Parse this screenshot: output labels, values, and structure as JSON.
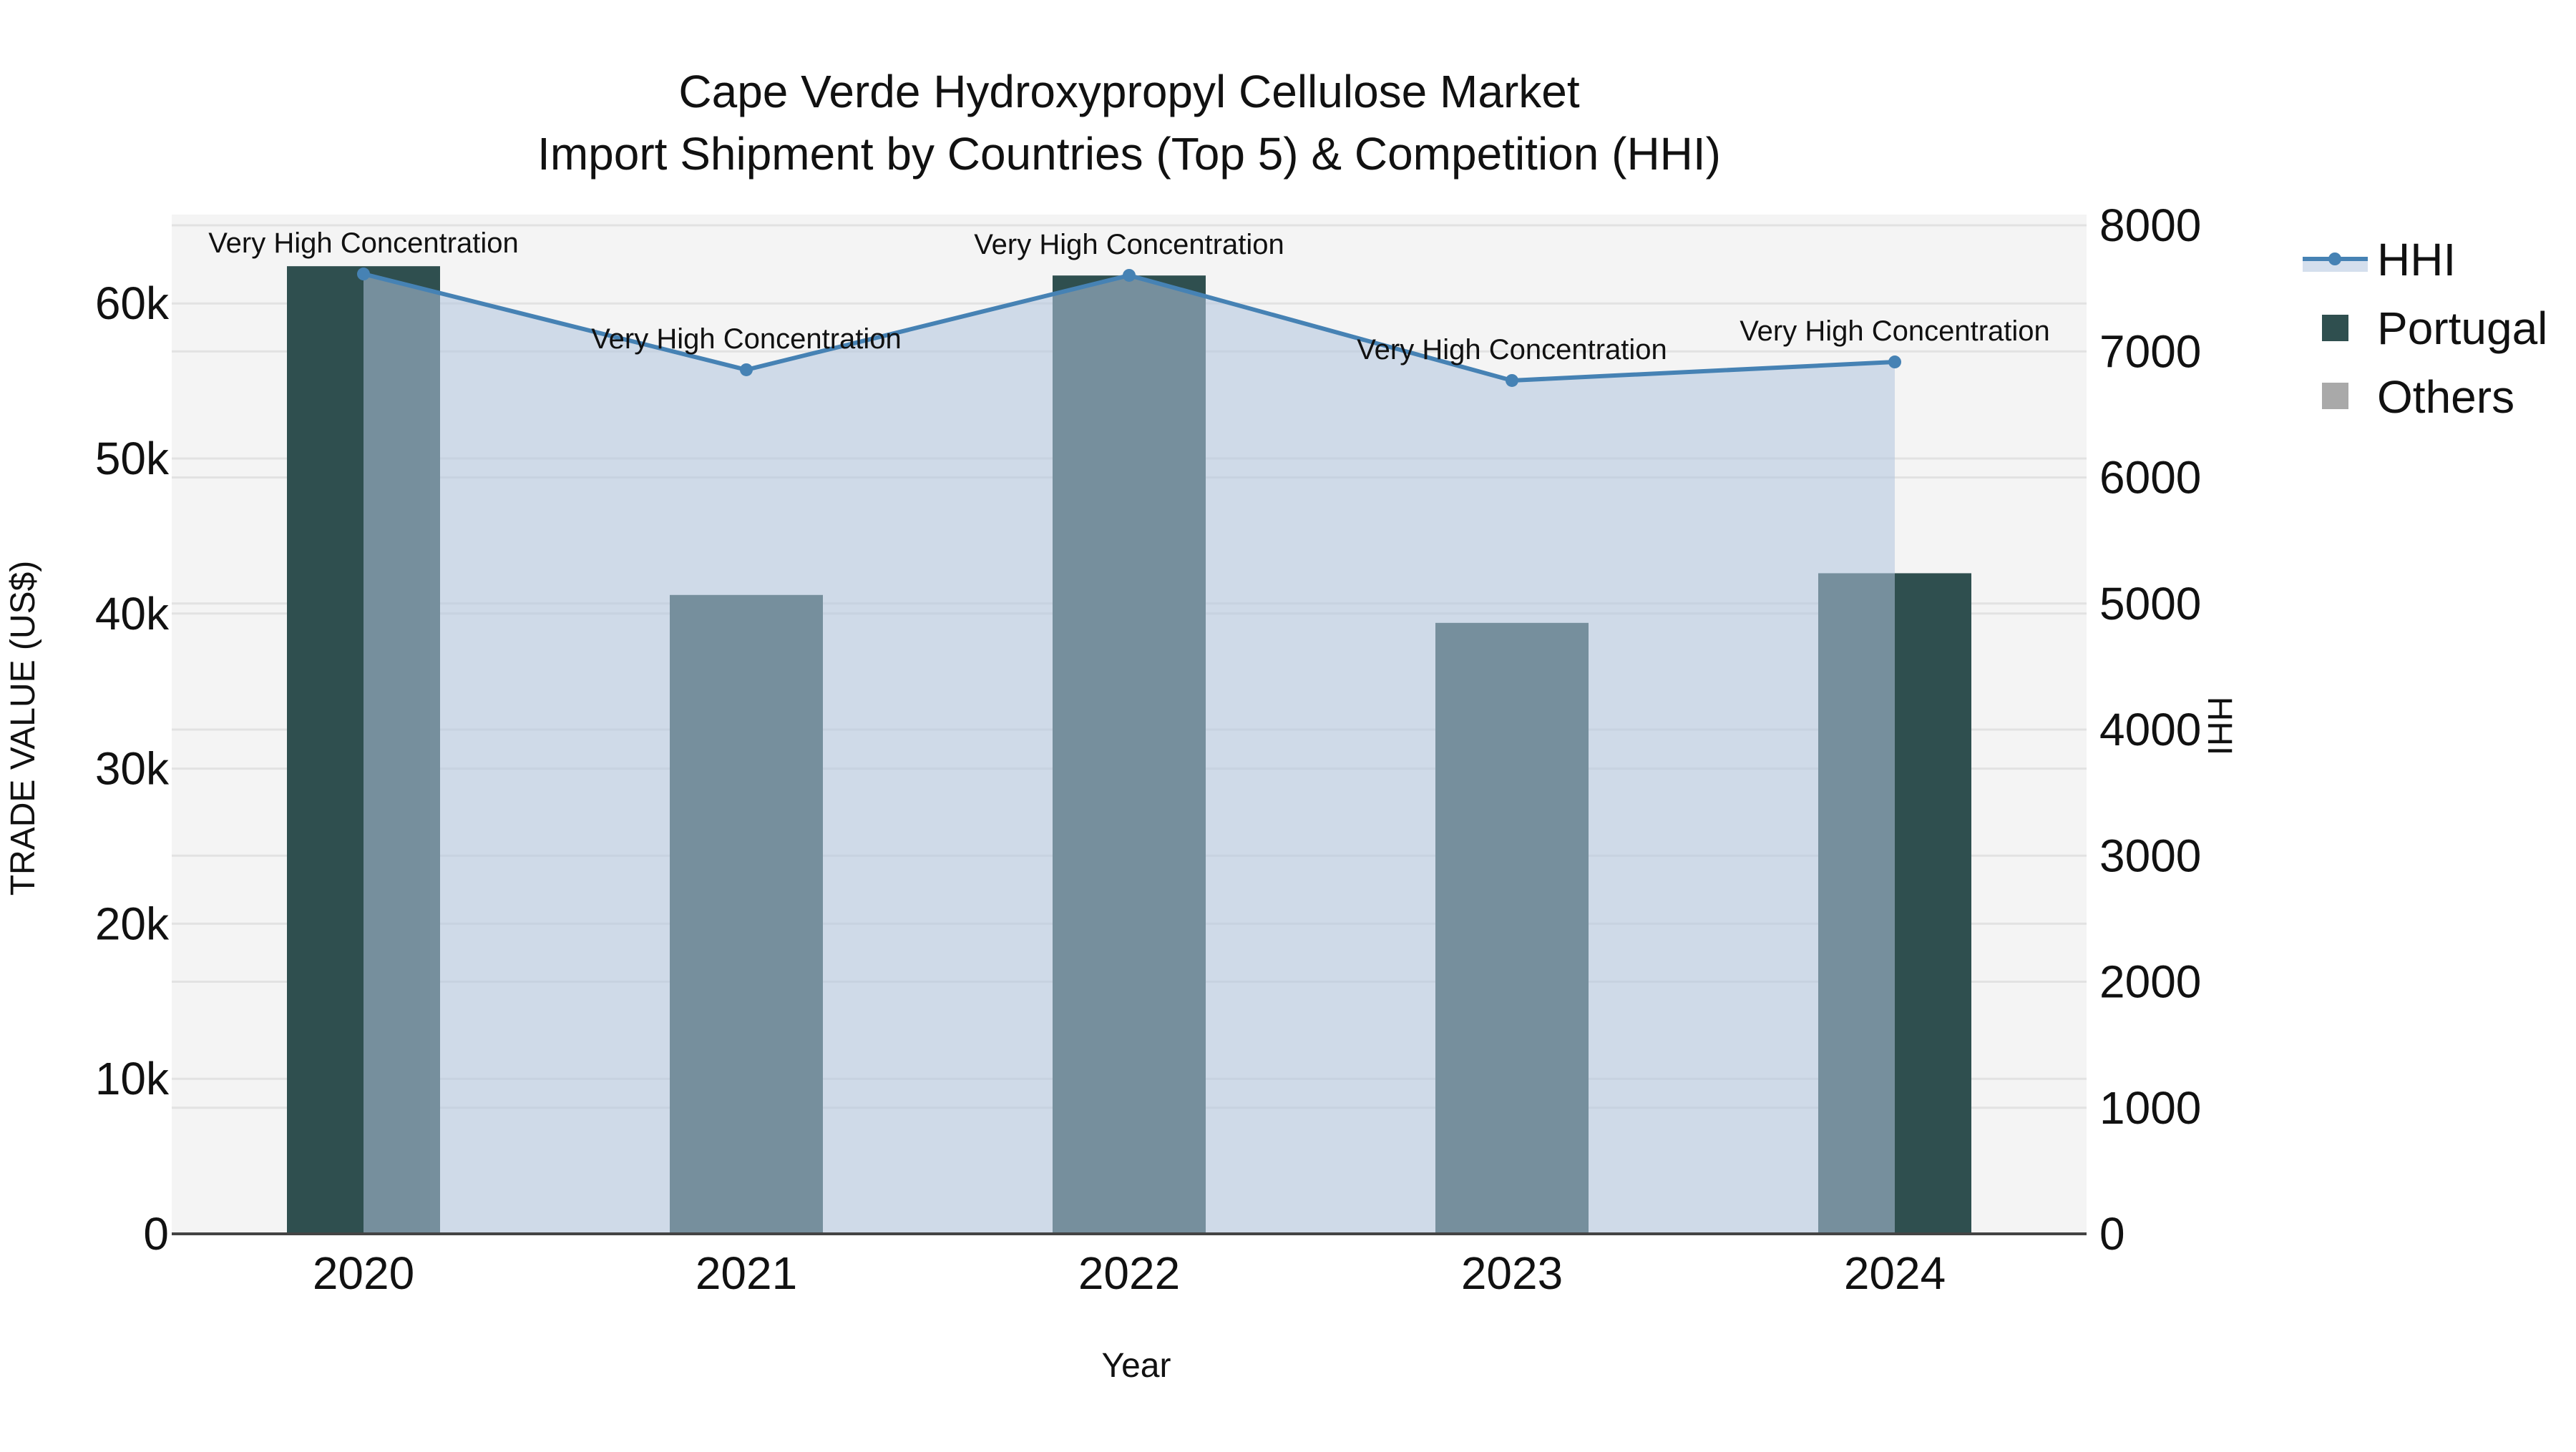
{
  "title": {
    "line1": "Cape Verde Hydroxypropyl Cellulose Market",
    "line2": "Import Shipment by Countries (Top 5) & Competition (HHI)"
  },
  "axes": {
    "x_title": "Year",
    "y_left_title": "TRADE VALUE (US$)",
    "y_right_title": "HHI",
    "y_left_ticks": [
      "0",
      "10k",
      "20k",
      "30k",
      "40k",
      "50k",
      "60k"
    ],
    "y_right_ticks": [
      "0",
      "1000",
      "2000",
      "3000",
      "4000",
      "5000",
      "6000",
      "7000",
      "8000"
    ]
  },
  "legend": {
    "items": [
      {
        "label": "HHI",
        "symbol": "line-marker-fill",
        "color": "#4682b4"
      },
      {
        "label": "Portugal",
        "symbol": "square",
        "color": "#2f4f4f"
      },
      {
        "label": "Others",
        "symbol": "square",
        "color": "#a9a9a9"
      }
    ]
  },
  "colors": {
    "plot_bg": "#f4f4f4",
    "grid": "#e2e2e2",
    "portugal": "#2f4f4f",
    "others": "#a9a9a9",
    "hhi_line": "#4682b4",
    "hhi_fill": "rgba(176,196,222,0.55)",
    "axis_line": "#444444"
  },
  "chart_data": {
    "type": "bar",
    "title": "Cape Verde Hydroxypropyl Cellulose Market — Import Shipment by Countries (Top 5) & Competition (HHI)",
    "xlabel": "Year",
    "ylabel": "TRADE VALUE (US$)",
    "y2label": "HHI",
    "categories": [
      "2020",
      "2021",
      "2022",
      "2023",
      "2024"
    ],
    "barmode": "stack",
    "series": [
      {
        "name": "Portugal",
        "type": "bar",
        "axis": "left",
        "values": [
          62400,
          41200,
          61800,
          39400,
          42600
        ]
      },
      {
        "name": "Others",
        "type": "bar",
        "axis": "left",
        "values": [
          0,
          0,
          0,
          0,
          0
        ]
      },
      {
        "name": "HHI",
        "type": "line+area",
        "axis": "right",
        "values": [
          7614,
          6854,
          7603,
          6769,
          6916
        ]
      }
    ],
    "annotations": [
      {
        "x": "2020",
        "text": "Very High Concentration"
      },
      {
        "x": "2021",
        "text": "Very High Concentration"
      },
      {
        "x": "2022",
        "text": "Very High Concentration"
      },
      {
        "x": "2023",
        "text": "Very High Concentration"
      },
      {
        "x": "2024",
        "text": "Very High Concentration"
      }
    ],
    "ylim": [
      0,
      65700
    ],
    "y2lim": [
      0,
      8087
    ],
    "grid": true,
    "legend_position": "right-top"
  }
}
